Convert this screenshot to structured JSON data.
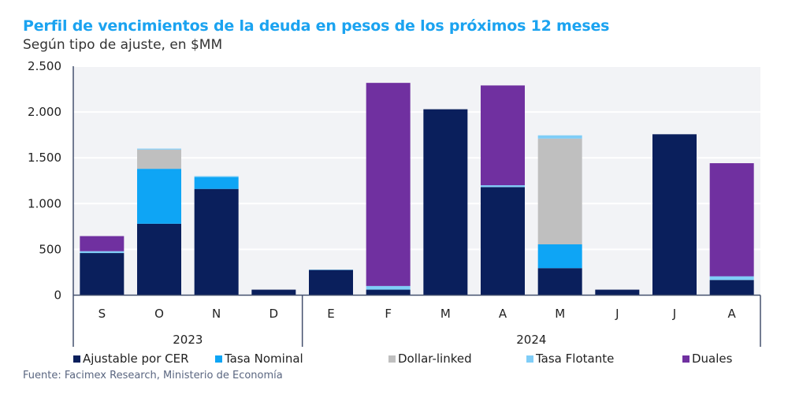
{
  "chart_data": {
    "type": "bar",
    "stacked": true,
    "title": "Perfil de vencimientos de la deuda en pesos de los próximos 12 meses",
    "subtitle": "Según tipo de ajuste, en $MM",
    "source": "Fuente: Facimex Research, Ministerio de Economía",
    "categories": [
      "S",
      "O",
      "N",
      "D",
      "E",
      "F",
      "M",
      "A",
      "M",
      "J",
      "J",
      "A"
    ],
    "groups": [
      {
        "label": "2023",
        "span": 4
      },
      {
        "label": "2024",
        "span": 8
      }
    ],
    "ylim": [
      0,
      2500
    ],
    "yticks": [
      0,
      500,
      1000,
      1500,
      2000,
      2500
    ],
    "ytick_labels": [
      "0",
      "500",
      "1.000",
      "1.500",
      "2.000",
      "2.500"
    ],
    "grid": true,
    "legend": "bottom",
    "series": [
      {
        "name": "Ajustable por CER",
        "color": "#0a1f5c",
        "values": [
          460,
          780,
          1160,
          60,
          275,
          60,
          2030,
          1180,
          295,
          60,
          1757,
          166
        ]
      },
      {
        "name": "Tasa Nominal",
        "color": "#0ea5f5",
        "values": [
          0,
          600,
          130,
          0,
          0,
          0,
          0,
          0,
          260,
          0,
          0,
          0
        ]
      },
      {
        "name": "Dollar-linked",
        "color": "#bfbfbf",
        "values": [
          0,
          210,
          0,
          0,
          0,
          0,
          0,
          0,
          1155,
          0,
          0,
          0
        ]
      },
      {
        "name": "Tasa Flotante",
        "color": "#7fcdf7",
        "values": [
          20,
          10,
          10,
          0,
          5,
          40,
          0,
          20,
          35,
          0,
          0,
          40
        ]
      },
      {
        "name": "Duales",
        "color": "#7030a0",
        "values": [
          165,
          0,
          0,
          0,
          0,
          2218,
          0,
          1090,
          0,
          0,
          0,
          1235
        ]
      }
    ]
  }
}
